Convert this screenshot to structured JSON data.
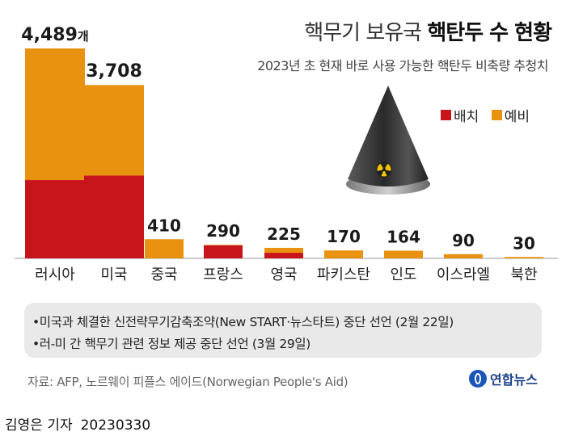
{
  "header": {
    "title_normal": "핵무기 보유국 ",
    "title_bold": "핵탄두 수 현황",
    "subtitle": "2023년 초 현재 바로 사용 가능한 핵탄두 비축량 추청치"
  },
  "chart_data": {
    "type": "bar",
    "stacked": true,
    "categories": [
      "러시아",
      "미국",
      "중국",
      "프랑스",
      "영국",
      "파키스탄",
      "인도",
      "이스라엘",
      "북한"
    ],
    "series": [
      {
        "name": "배치",
        "color": "#c8141b",
        "values": [
          1674,
          1770,
          0,
          280,
          120,
          0,
          0,
          0,
          0
        ]
      },
      {
        "name": "예비",
        "color": "#e8920f",
        "values": [
          2815,
          1938,
          410,
          10,
          105,
          170,
          164,
          90,
          30
        ]
      }
    ],
    "totals": [
      4489,
      3708,
      410,
      290,
      225,
      170,
      164,
      90,
      30
    ],
    "total_labels": [
      "4,489",
      "3,708",
      "410",
      "290",
      "225",
      "170",
      "164",
      "90",
      "30"
    ],
    "first_label_unit": "개",
    "ylim": [
      0,
      4489
    ],
    "grid": false,
    "legend_position": "top-right"
  },
  "notes": [
    "•미국과 체결한 신전략무기감축조약(New START·뉴스타트) 중단 선언 (2월 22일)",
    "•러-미 간 핵무기 관련 정보 제공 중단 선언 (3월 29일)"
  ],
  "source": "자료: AFP, 노르웨이 피플스 에이드(Norwegian People's Aid)",
  "logo": {
    "text": "연합뉴스"
  },
  "credit": {
    "author": "김영은 기자",
    "date": "20230330"
  }
}
